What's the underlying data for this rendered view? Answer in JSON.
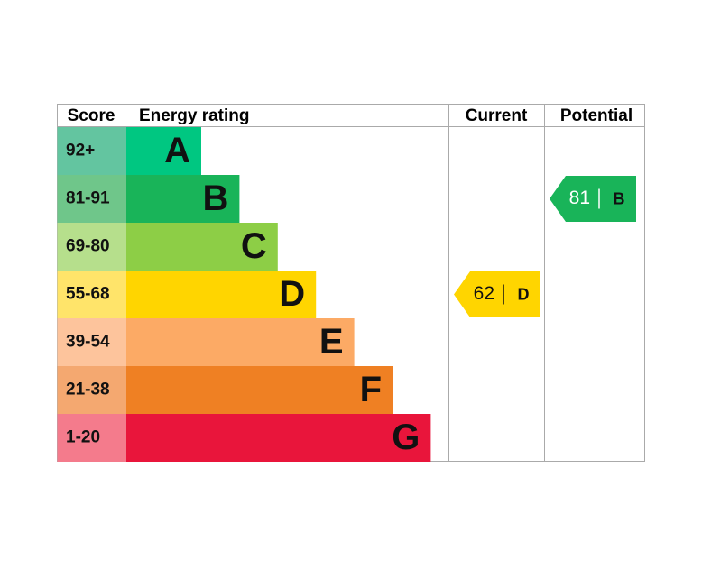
{
  "headers": [
    "Score",
    "Energy rating",
    "Current",
    "Potential"
  ],
  "bands": [
    {
      "score": "92+",
      "letter": "A"
    },
    {
      "score": "81-91",
      "letter": "B"
    },
    {
      "score": "69-80",
      "letter": "C"
    },
    {
      "score": "55-68",
      "letter": "D"
    },
    {
      "score": "39-54",
      "letter": "E"
    },
    {
      "score": "21-38",
      "letter": "F"
    },
    {
      "score": "1-20",
      "letter": "G"
    }
  ],
  "current": {
    "value": 62,
    "letter": "D"
  },
  "potential": {
    "value": 81,
    "letter": "B"
  }
}
